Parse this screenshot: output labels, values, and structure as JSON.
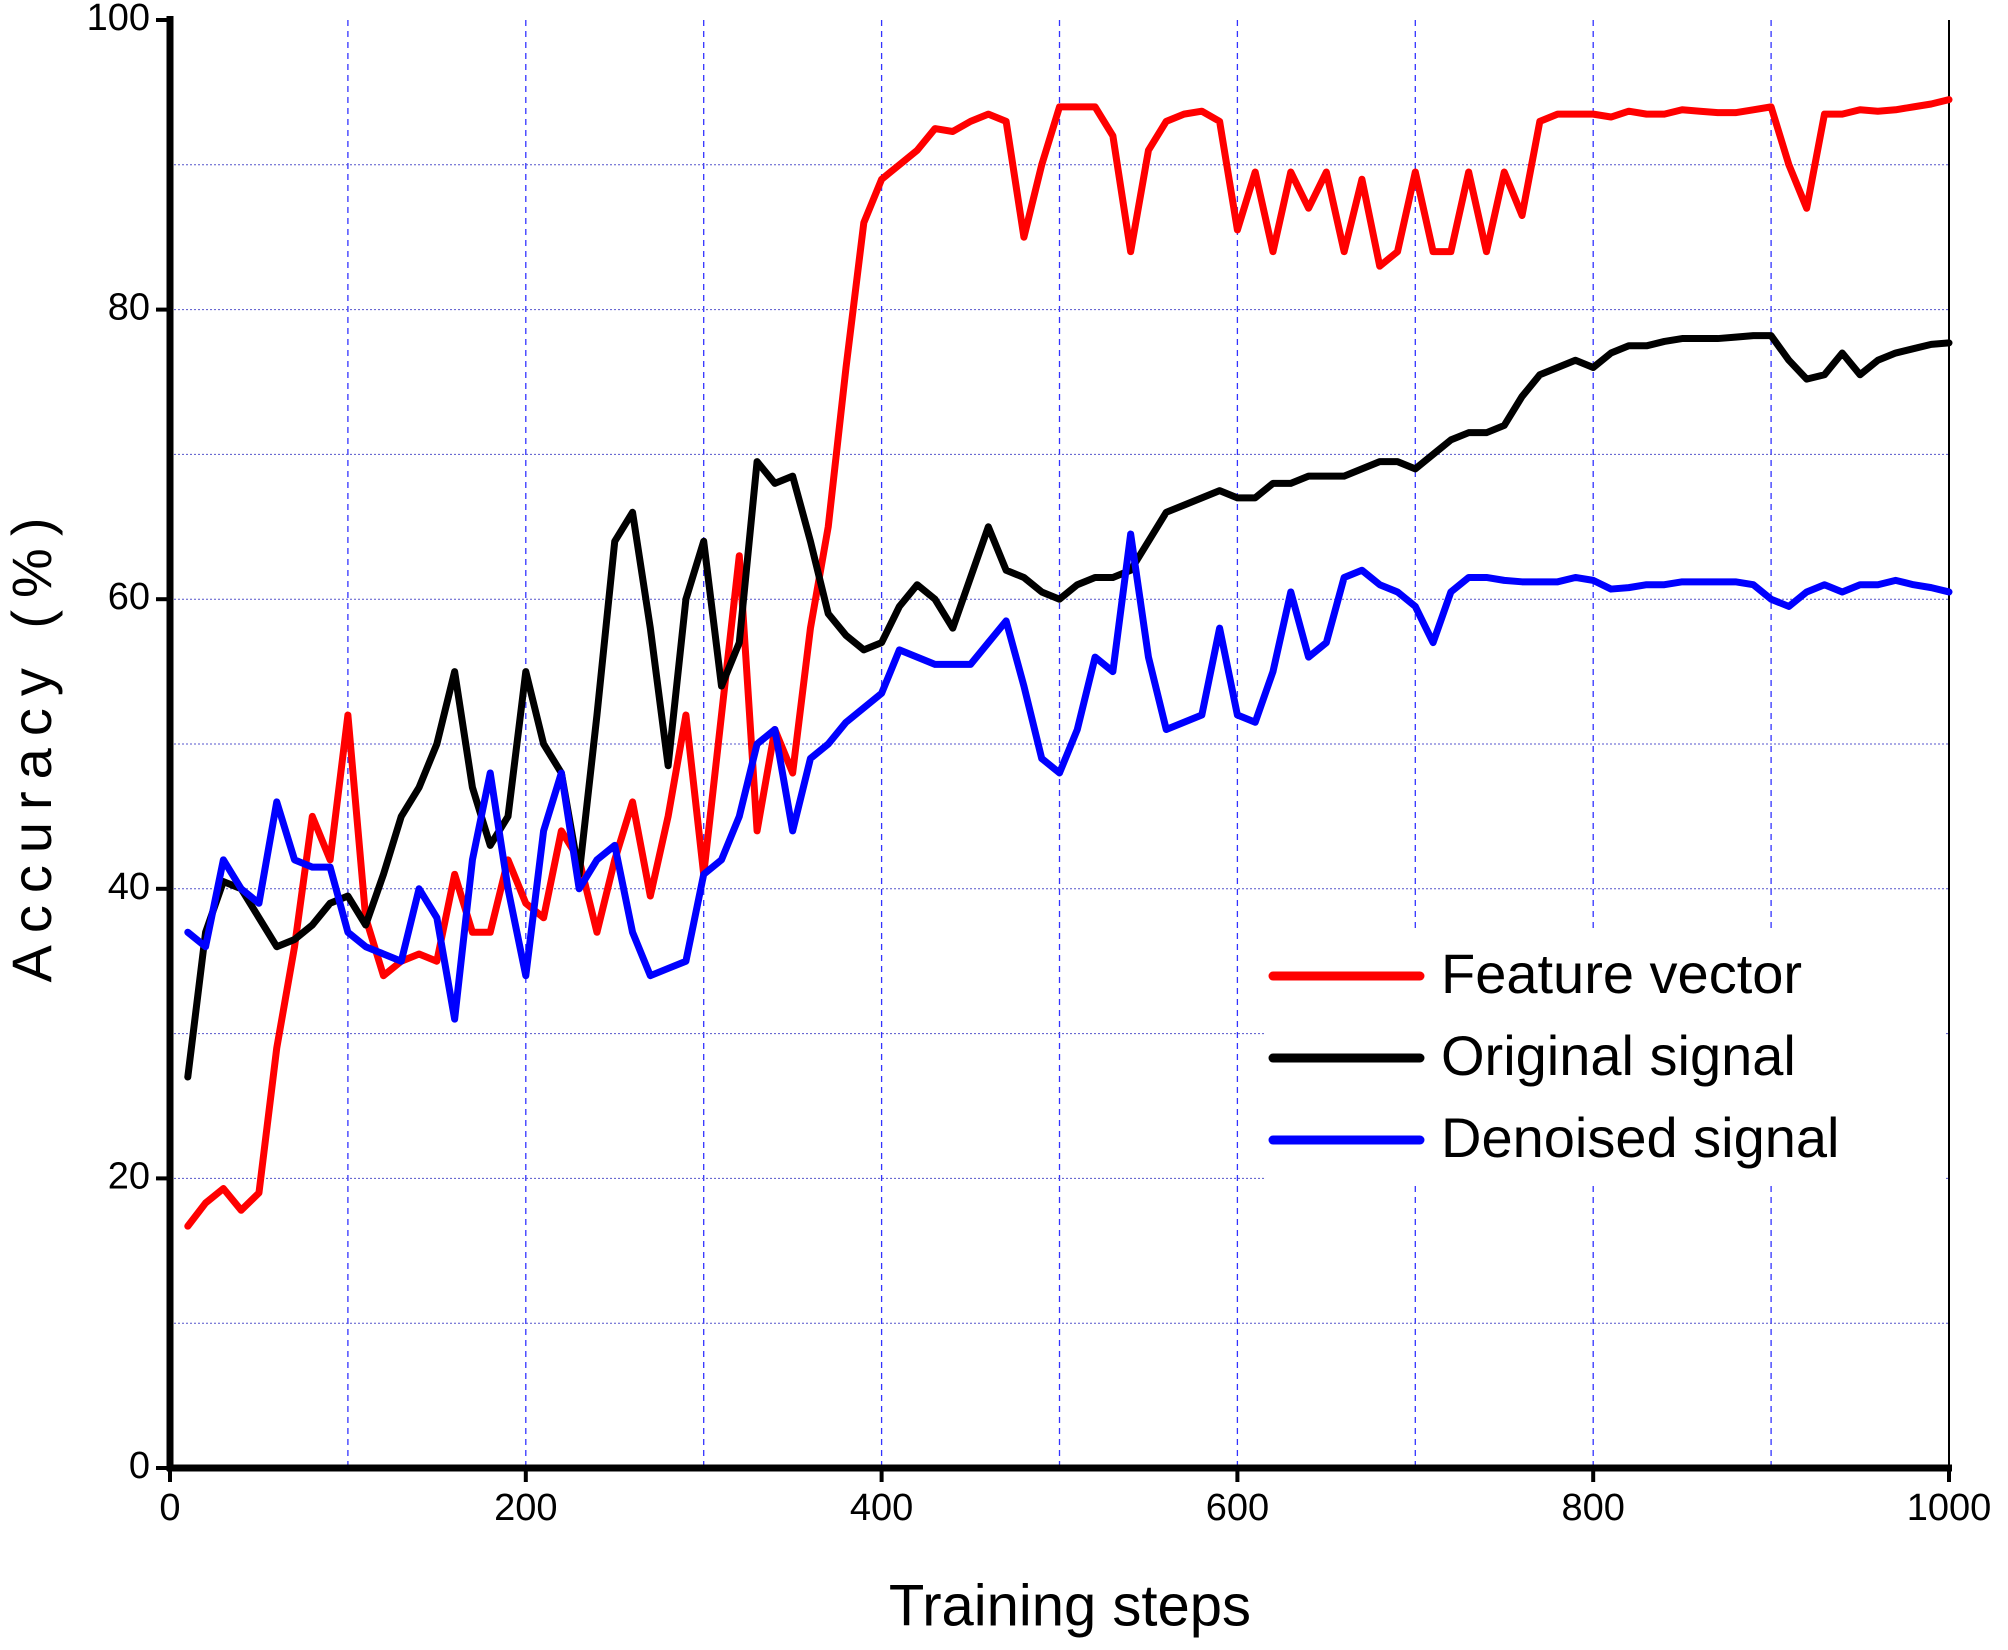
{
  "chart_data": {
    "type": "line",
    "xlabel": "Training steps",
    "ylabel": "Accuracy (%)",
    "xlim": [
      0,
      1000
    ],
    "ylim": [
      0,
      100
    ],
    "xticks": [
      0,
      200,
      400,
      600,
      800,
      1000
    ],
    "yticks": [
      0,
      20,
      40,
      60,
      80,
      100
    ],
    "xminorticks": [
      100,
      200,
      300,
      400,
      500,
      600,
      700,
      800,
      900,
      1000
    ],
    "yminorticks": [
      10,
      20,
      30,
      40,
      50,
      60,
      70,
      80,
      90
    ],
    "grid": true,
    "legend": "lower right",
    "x": [
      10,
      20,
      30,
      40,
      50,
      60,
      70,
      80,
      90,
      100,
      110,
      120,
      130,
      140,
      150,
      160,
      170,
      180,
      190,
      200,
      210,
      220,
      230,
      240,
      250,
      260,
      270,
      280,
      290,
      300,
      310,
      320,
      330,
      340,
      350,
      360,
      370,
      380,
      390,
      400,
      410,
      420,
      430,
      440,
      450,
      460,
      470,
      480,
      490,
      500,
      510,
      520,
      530,
      540,
      550,
      560,
      570,
      580,
      590,
      600,
      610,
      620,
      630,
      640,
      650,
      660,
      670,
      680,
      690,
      700,
      710,
      720,
      730,
      740,
      750,
      760,
      770,
      780,
      790,
      800,
      810,
      820,
      830,
      840,
      850,
      860,
      870,
      880,
      890,
      900,
      910,
      920,
      930,
      940,
      950,
      960,
      970,
      980,
      990,
      1000
    ],
    "series": [
      {
        "name": "Feature vector",
        "color": "#ff0000",
        "values": [
          16.7,
          18.3,
          19.3,
          17.8,
          19,
          29,
          36,
          45,
          42,
          52,
          38,
          34,
          35,
          35.5,
          35,
          41,
          37,
          37,
          42,
          39,
          38,
          44,
          42,
          37,
          42,
          46,
          39.5,
          45,
          52,
          41,
          52,
          63,
          44,
          51,
          48,
          58,
          65,
          76,
          86,
          89,
          90,
          91,
          92.5,
          92.3,
          93,
          93.5,
          93,
          85,
          90,
          94,
          94,
          94,
          92,
          84,
          91,
          93,
          93.5,
          93.7,
          93,
          85.5,
          89.5,
          84,
          89.5,
          87,
          89.5,
          84,
          89,
          83,
          84,
          89.5,
          84,
          84,
          89.5,
          84,
          89.5,
          86.5,
          93,
          93.5,
          93.5,
          93.5,
          93.3,
          93.7,
          93.5,
          93.5,
          93.8,
          93.7,
          93.6,
          93.6,
          93.8,
          94,
          90,
          87,
          93.5,
          93.5,
          93.8,
          93.7,
          93.8,
          94,
          94.2,
          94.5
        ]
      },
      {
        "name": "Original signal",
        "color": "#000000",
        "values": [
          27,
          37,
          40.5,
          40,
          38,
          36,
          36.5,
          37.5,
          39,
          39.5,
          37.5,
          41,
          45,
          47,
          50,
          55,
          47,
          43,
          45,
          55,
          50,
          48,
          41,
          52,
          64,
          66,
          58,
          48.5,
          60,
          64,
          54,
          57,
          69.5,
          68,
          68.5,
          64,
          59,
          57.5,
          56.5,
          57,
          59.5,
          61,
          60,
          58,
          61.5,
          65,
          62,
          61.5,
          60.5,
          60,
          61,
          61.5,
          61.5,
          62,
          64,
          66,
          66.5,
          67,
          67.5,
          67,
          67,
          68,
          68,
          68.5,
          68.5,
          68.5,
          69,
          69.5,
          69.5,
          69,
          70,
          71,
          71.5,
          71.5,
          72,
          74,
          75.5,
          76,
          76.5,
          76,
          77,
          77.5,
          77.5,
          77.8,
          78,
          78,
          78,
          78.1,
          78.2,
          78.2,
          76.5,
          75.2,
          75.5,
          77,
          75.5,
          76.5,
          77,
          77.3,
          77.6,
          77.7
        ]
      },
      {
        "name": "Denoised signal",
        "color": "#0000ff",
        "values": [
          37,
          36,
          42,
          40,
          39,
          46,
          42,
          41.5,
          41.5,
          37,
          36,
          35.5,
          35,
          40,
          38,
          31,
          42,
          48,
          40,
          34,
          44,
          48,
          40,
          42,
          43,
          37,
          34,
          34.5,
          35,
          41,
          42,
          45,
          50,
          51,
          44,
          49,
          50,
          51.5,
          52.5,
          53.5,
          56.5,
          56,
          55.5,
          55.5,
          55.5,
          57,
          58.5,
          54,
          49,
          48,
          51,
          56,
          55,
          64.5,
          56,
          51,
          51.5,
          52,
          58,
          52,
          51.5,
          55,
          60.5,
          56,
          57,
          61.5,
          62,
          61,
          60.5,
          59.5,
          57,
          60.5,
          61.5,
          61.5,
          61.3,
          61.2,
          61.2,
          61.2,
          61.5,
          61.3,
          60.7,
          60.8,
          61,
          61,
          61.2,
          61.2,
          61.2,
          61.2,
          61,
          60,
          59.5,
          60.5,
          61,
          60.5,
          61,
          61,
          61.3,
          61,
          60.8,
          60.5
        ]
      }
    ]
  }
}
